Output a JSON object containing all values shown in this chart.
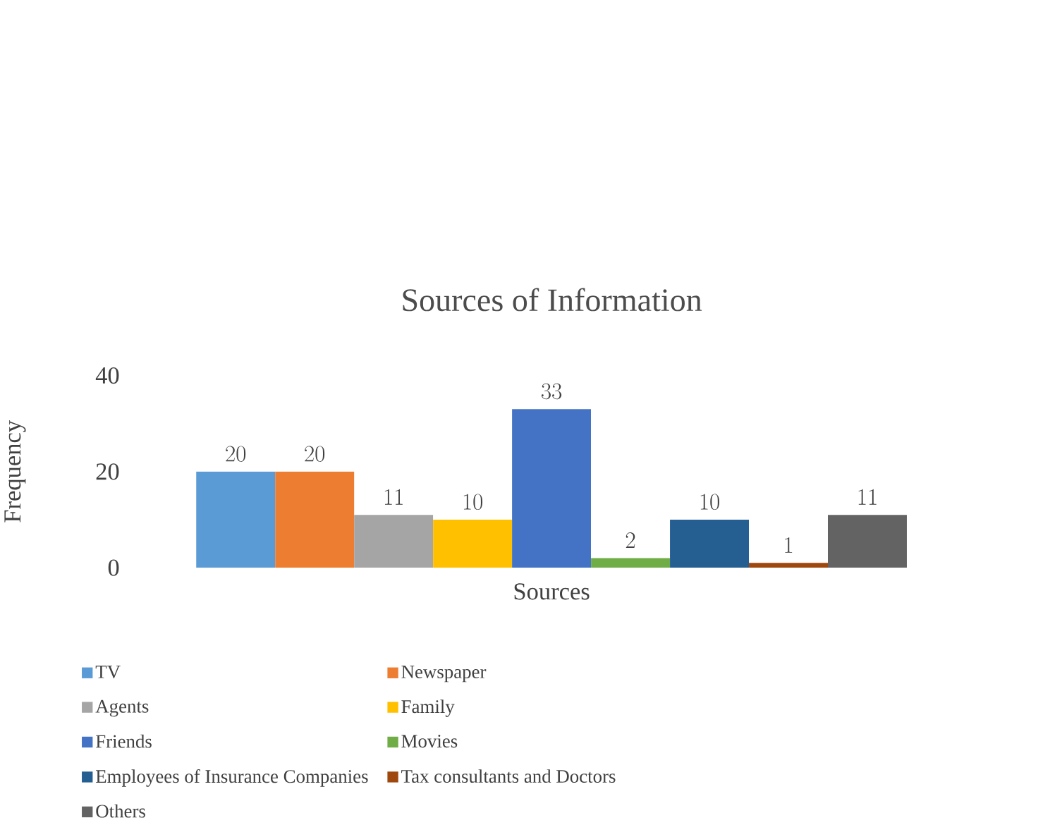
{
  "chart_data": {
    "type": "bar",
    "title": "Sources of Information",
    "xlabel": "Sources",
    "ylabel": "Frequency",
    "categories": [
      null
    ],
    "series": [
      {
        "name": "TV",
        "color": "#5b9bd5",
        "values": [
          20
        ]
      },
      {
        "name": "Newspaper",
        "color": "#ed7d31",
        "values": [
          20
        ]
      },
      {
        "name": "Agents",
        "color": "#a5a5a5",
        "values": [
          11
        ]
      },
      {
        "name": "Family",
        "color": "#ffc000",
        "values": [
          10
        ]
      },
      {
        "name": "Friends",
        "color": "#4472c4",
        "values": [
          33
        ]
      },
      {
        "name": "Movies",
        "color": "#70ad47",
        "values": [
          2
        ]
      },
      {
        "name": "Employees of Insurance Companies",
        "color": "#255e91",
        "values": [
          10
        ]
      },
      {
        "name": "Tax consultants and Doctors",
        "color": "#9e480e",
        "values": [
          1
        ]
      },
      {
        "name": "Others",
        "color": "#636363",
        "values": [
          11
        ]
      }
    ],
    "ylim": [
      0,
      40
    ],
    "yticks": [
      0,
      20,
      40
    ],
    "data_labels": true,
    "legend": "bottom"
  }
}
